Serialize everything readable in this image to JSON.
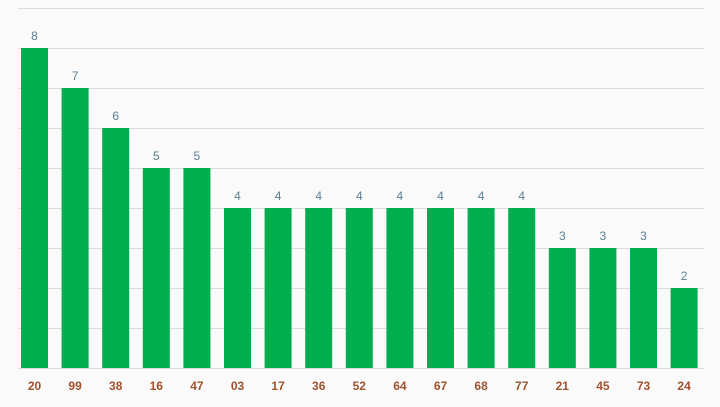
{
  "chart_data": {
    "type": "bar",
    "title": "",
    "xlabel": "",
    "ylabel": "",
    "categories": [
      "20",
      "99",
      "38",
      "16",
      "47",
      "03",
      "17",
      "36",
      "52",
      "64",
      "67",
      "68",
      "77",
      "21",
      "45",
      "73",
      "24"
    ],
    "values": [
      8,
      7,
      6,
      5,
      5,
      4,
      4,
      4,
      4,
      4,
      4,
      4,
      4,
      3,
      3,
      3,
      2
    ],
    "ylim": [
      0,
      9
    ],
    "grid": true,
    "legend": "none",
    "bar_color": "#00ad4f",
    "value_label_color": "#5b7f95",
    "tick_label_color": "#a0522d",
    "grid_color": "#dcdcdc"
  }
}
